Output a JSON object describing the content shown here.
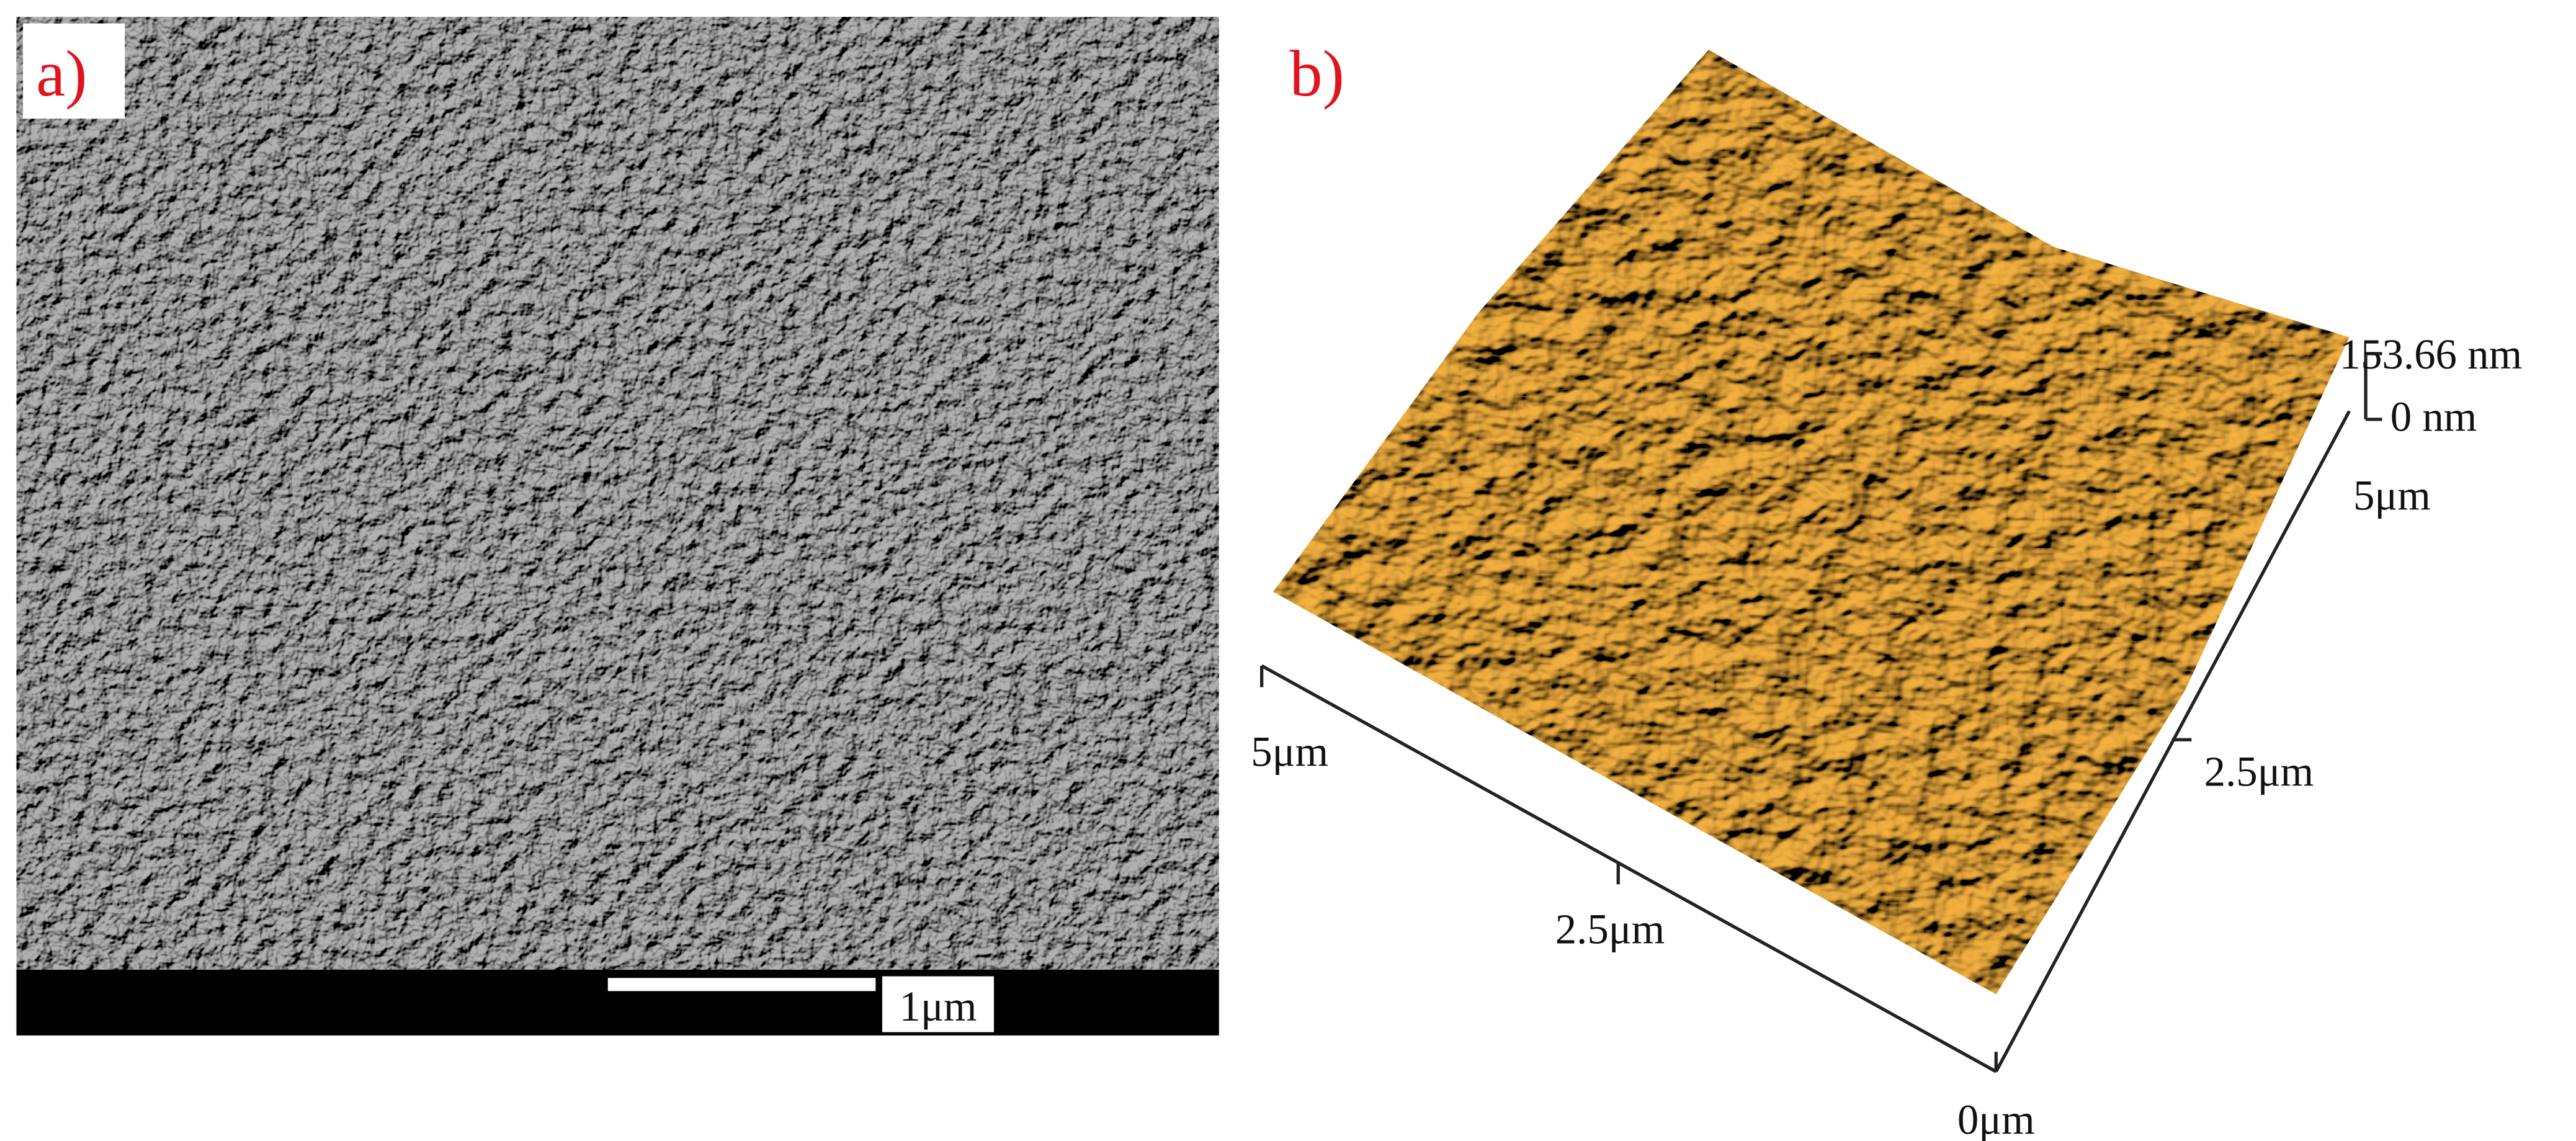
{
  "panels": [
    {
      "label": "a)",
      "scale_bar": "1μm"
    },
    {
      "label": "b)",
      "z_max": "153.66 nm",
      "z_min": "0 nm",
      "x_axis": {
        "start": "5μm",
        "mid": "2.5μm",
        "end": "0μm"
      },
      "y_axis": {
        "mid": "2.5μm",
        "end": "5μm"
      }
    }
  ]
}
